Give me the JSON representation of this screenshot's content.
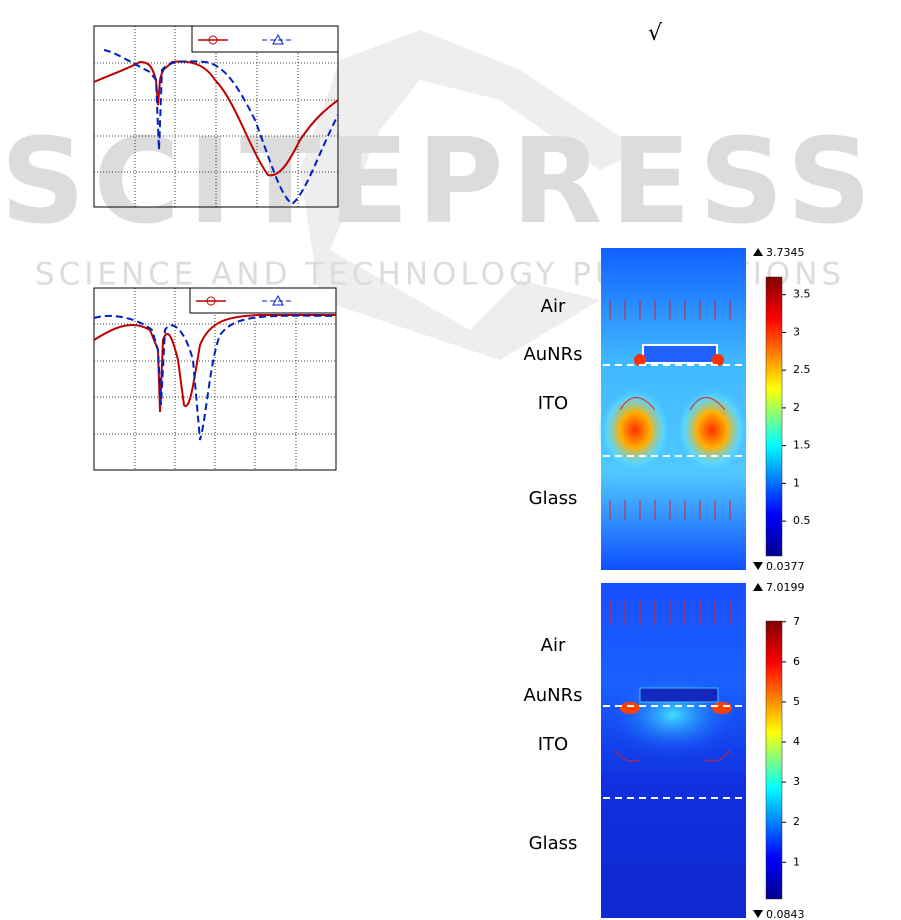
{
  "watermark": {
    "title": "SCITEPRESS",
    "subtitle": "SCIENCE AND TECHNOLOGY PUBLICATIONS"
  },
  "sqrt_symbol": "√",
  "field_maps": [
    {
      "layers": [
        "Air",
        "AuNRs",
        "ITO",
        "Glass"
      ],
      "colorbar": {
        "max": 3.7345,
        "min": 0.0377,
        "ticks": [
          0.5,
          1,
          1.5,
          2,
          2.5,
          3,
          3.5
        ]
      }
    },
    {
      "layers": [
        "Air",
        "AuNRs",
        "ITO",
        "Glass"
      ],
      "colorbar": {
        "max": 7.0199,
        "min": 0.0843,
        "ticks": [
          1,
          2,
          3,
          4,
          5,
          6,
          7
        ]
      }
    }
  ]
}
